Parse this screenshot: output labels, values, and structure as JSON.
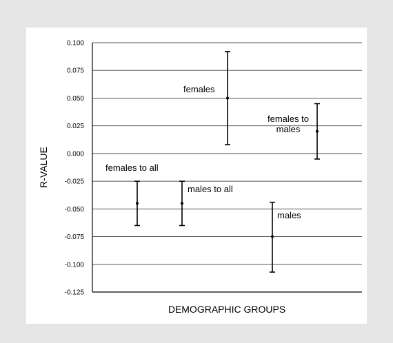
{
  "chart_data": {
    "type": "errorbar",
    "xlabel": "DEMOGRAPHIC GROUPS",
    "ylabel": "R-VALUE",
    "ylim": [
      -0.125,
      0.1
    ],
    "yticks": [
      "0.100",
      "0.075",
      "0.050",
      "0.025",
      "0.000",
      "-0.025",
      "-0.050",
      "-0.075",
      "-0.100",
      "-0.125"
    ],
    "ytick_values": [
      0.1,
      0.075,
      0.05,
      0.025,
      0.0,
      -0.025,
      -0.05,
      -0.075,
      -0.1,
      -0.125
    ],
    "grid": true,
    "groups": [
      {
        "label": [
          "females to all"
        ],
        "value": -0.045,
        "low": -0.065,
        "high": -0.025
      },
      {
        "label": [
          "males to all"
        ],
        "value": -0.045,
        "low": -0.065,
        "high": -0.025
      },
      {
        "label": [
          "females"
        ],
        "value": 0.05,
        "low": 0.008,
        "high": 0.092
      },
      {
        "label": [
          "males"
        ],
        "value": -0.075,
        "low": -0.107,
        "high": -0.044
      },
      {
        "label": [
          "females to",
          "males"
        ],
        "value": 0.02,
        "low": -0.005,
        "high": 0.045
      }
    ]
  }
}
